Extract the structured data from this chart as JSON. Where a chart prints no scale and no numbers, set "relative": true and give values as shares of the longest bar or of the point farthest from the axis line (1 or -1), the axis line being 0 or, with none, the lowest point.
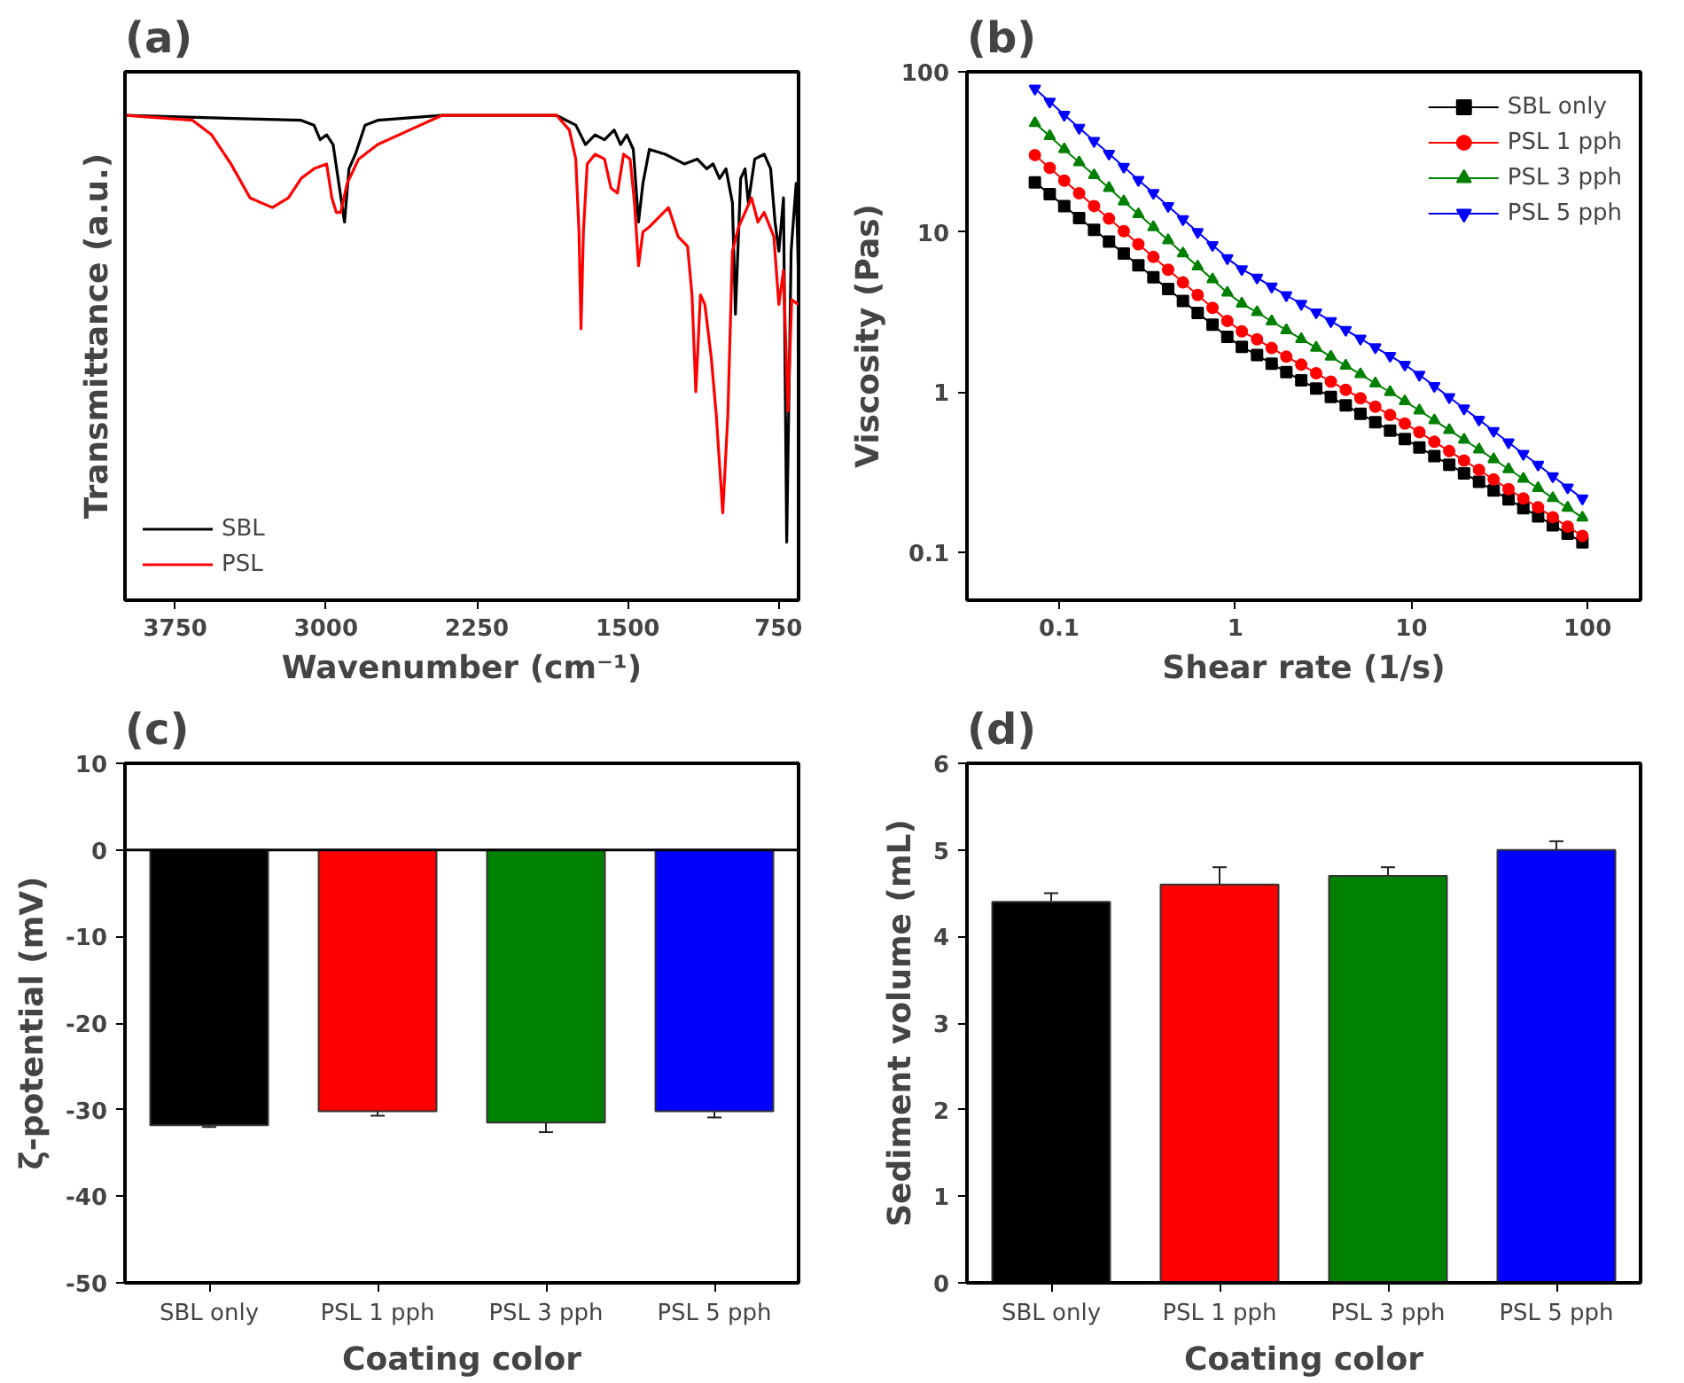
{
  "chart_data": [
    {
      "type": "line",
      "title": "(a)",
      "xlabel": "Wavenumber (cm⁻¹)",
      "ylabel": "Transmittance (a.u.)",
      "relative": true,
      "xlim": [
        4000,
        650
      ],
      "xticks": [
        3750,
        3000,
        2250,
        1500,
        750
      ],
      "legend": "bottom left",
      "series": [
        {
          "name": "SBL",
          "color": "#000000",
          "x": [
            3998,
            3124,
            3060,
            3029,
            2997,
            2965,
            2933,
            2908,
            2886,
            2854,
            2806,
            2743,
            2425,
            1853,
            1758,
            1710,
            1662,
            1615,
            1567,
            1535,
            1504,
            1472,
            1446,
            1424,
            1392,
            1313,
            1218,
            1154,
            1107,
            1075,
            1043,
            1011,
            979,
            964,
            938,
            916,
            900,
            868,
            821,
            789,
            767,
            748,
            725,
            709,
            687,
            662,
            652
          ],
          "values": [
            1.0,
            0.99,
            0.98,
            0.95,
            0.96,
            0.94,
            0.85,
            0.78,
            0.89,
            0.92,
            0.98,
            0.99,
            1.0,
            1.0,
            0.98,
            0.94,
            0.96,
            0.95,
            0.97,
            0.94,
            0.96,
            0.93,
            0.78,
            0.86,
            0.93,
            0.92,
            0.9,
            0.91,
            0.89,
            0.9,
            0.87,
            0.89,
            0.82,
            0.59,
            0.87,
            0.89,
            0.82,
            0.91,
            0.92,
            0.89,
            0.78,
            0.72,
            0.83,
            0.12,
            0.72,
            0.86,
            0.69
          ]
        },
        {
          "name": "PSL",
          "color": "#ff0000",
          "x": [
            3998,
            3664,
            3569,
            3473,
            3378,
            3267,
            3187,
            3124,
            3060,
            2997,
            2971,
            2949,
            2927,
            2895,
            2838,
            2743,
            2584,
            2425,
            1853,
            1790,
            1758,
            1742,
            1732,
            1720,
            1701,
            1662,
            1615,
            1583,
            1551,
            1520,
            1488,
            1466,
            1446,
            1424,
            1392,
            1345,
            1297,
            1249,
            1202,
            1180,
            1161,
            1138,
            1116,
            1084,
            1059,
            1027,
            1002,
            979,
            948,
            916,
            884,
            852,
            821,
            773,
            748,
            725,
            703,
            684,
            652
          ],
          "values": [
            1.0,
            0.99,
            0.96,
            0.9,
            0.83,
            0.81,
            0.83,
            0.87,
            0.89,
            0.9,
            0.83,
            0.8,
            0.8,
            0.86,
            0.91,
            0.94,
            0.97,
            1.0,
            1.0,
            0.97,
            0.91,
            0.76,
            0.56,
            0.76,
            0.9,
            0.92,
            0.91,
            0.85,
            0.84,
            0.92,
            0.91,
            0.82,
            0.69,
            0.76,
            0.77,
            0.79,
            0.81,
            0.75,
            0.73,
            0.63,
            0.43,
            0.63,
            0.61,
            0.5,
            0.38,
            0.18,
            0.38,
            0.72,
            0.77,
            0.8,
            0.83,
            0.78,
            0.8,
            0.75,
            0.61,
            0.68,
            0.39,
            0.62,
            0.61
          ]
        }
      ]
    },
    {
      "type": "line",
      "title": "(b)",
      "xlabel": "Shear rate (1/s)",
      "ylabel": "Viscosity (Pas)",
      "log": "xy",
      "xlim": [
        0.03,
        200
      ],
      "ylim": [
        0.05,
        100
      ],
      "xticks": [
        0.1,
        1,
        10,
        100
      ],
      "yticks": [
        0.1,
        1,
        10,
        100
      ],
      "legend": "top right",
      "x": [
        0.0729,
        0.0885,
        0.107,
        0.13,
        0.158,
        0.192,
        0.233,
        0.282,
        0.343,
        0.416,
        0.505,
        0.612,
        0.743,
        0.902,
        1.09,
        1.33,
        1.61,
        1.95,
        2.37,
        2.88,
        3.49,
        4.24,
        5.14,
        6.24,
        7.57,
        9.18,
        11.1,
        13.5,
        16.4,
        19.9,
        24.2,
        29.3,
        35.6,
        43.2,
        52.4,
        63.5,
        77.1,
        93.5
      ],
      "series": [
        {
          "name": "SBL only",
          "color": "#000000",
          "marker": "square",
          "values": [
            20.4,
            17.2,
            14.5,
            12.2,
            10.3,
            8.69,
            7.33,
            6.18,
            5.2,
            4.39,
            3.7,
            3.12,
            2.63,
            2.21,
            1.91,
            1.7,
            1.5,
            1.33,
            1.18,
            1.05,
            0.929,
            0.824,
            0.73,
            0.647,
            0.574,
            0.508,
            0.45,
            0.397,
            0.351,
            0.31,
            0.274,
            0.242,
            0.213,
            0.188,
            0.167,
            0.147,
            0.13,
            0.115
          ]
        },
        {
          "name": "PSL 1 pph",
          "color": "#ff0000",
          "marker": "circle",
          "values": [
            30.2,
            25.1,
            20.9,
            17.4,
            14.5,
            12.1,
            10.1,
            8.37,
            6.97,
            5.8,
            4.83,
            4.03,
            3.35,
            2.78,
            2.39,
            2.13,
            1.88,
            1.66,
            1.48,
            1.31,
            1.16,
            1.03,
            0.913,
            0.809,
            0.718,
            0.635,
            0.56,
            0.488,
            0.427,
            0.373,
            0.326,
            0.284,
            0.247,
            0.216,
            0.19,
            0.165,
            0.144,
            0.126
          ]
        },
        {
          "name": "PSL 3 pph",
          "color": "#008000",
          "marker": "triangle",
          "values": [
            47.8,
            39.7,
            32.8,
            27.2,
            22.6,
            18.8,
            15.5,
            12.9,
            10.7,
            8.86,
            7.33,
            6.08,
            5.05,
            4.17,
            3.56,
            3.15,
            2.76,
            2.43,
            2.14,
            1.89,
            1.66,
            1.46,
            1.29,
            1.13,
            0.998,
            0.875,
            0.766,
            0.665,
            0.578,
            0.503,
            0.437,
            0.38,
            0.329,
            0.287,
            0.251,
            0.217,
            0.189,
            0.164
          ]
        },
        {
          "name": "PSL 5 pph",
          "color": "#0000ff",
          "marker": "triangle_down",
          "values": [
            78.5,
            65.1,
            53.9,
            44.6,
            37.0,
            30.8,
            25.5,
            21.1,
            17.5,
            14.5,
            12.0,
            9.98,
            8.28,
            6.84,
            5.85,
            5.18,
            4.55,
            4.02,
            3.55,
            3.14,
            2.77,
            2.44,
            2.15,
            1.9,
            1.68,
            1.48,
            1.28,
            1.09,
            0.927,
            0.788,
            0.671,
            0.57,
            0.484,
            0.41,
            0.351,
            0.297,
            0.253,
            0.216
          ]
        }
      ]
    },
    {
      "type": "bar",
      "title": "(c)",
      "xlabel": "Coating color",
      "ylabel": "ζ-potential (mV)",
      "categories": [
        "SBL only",
        "PSL 1 pph",
        "PSL 3 pph",
        "PSL 5 pph"
      ],
      "values": [
        -31.8,
        -30.2,
        -31.5,
        -30.2
      ],
      "errors": [
        0.2,
        0.5,
        1.1,
        0.7
      ],
      "colors": [
        "#000000",
        "#ff0000",
        "#008000",
        "#0000ff"
      ],
      "ylim": [
        -50,
        10
      ],
      "yticks": [
        -50,
        -40,
        -30,
        -20,
        -10,
        0,
        10
      ],
      "ref_lines": [
        {
          "axis": "y",
          "value": 0
        }
      ]
    },
    {
      "type": "bar",
      "title": "(d)",
      "xlabel": "Coating color",
      "ylabel": "Sediment volume (mL)",
      "categories": [
        "SBL only",
        "PSL 1 pph",
        "PSL 3 pph",
        "PSL 5 pph"
      ],
      "values": [
        4.4,
        4.6,
        4.7,
        5.0
      ],
      "errors": [
        0.1,
        0.2,
        0.1,
        0.1
      ],
      "colors": [
        "#000000",
        "#ff0000",
        "#008000",
        "#0000ff"
      ],
      "ylim": [
        0,
        6
      ],
      "yticks": [
        0,
        1,
        2,
        3,
        4,
        5,
        6
      ]
    }
  ]
}
